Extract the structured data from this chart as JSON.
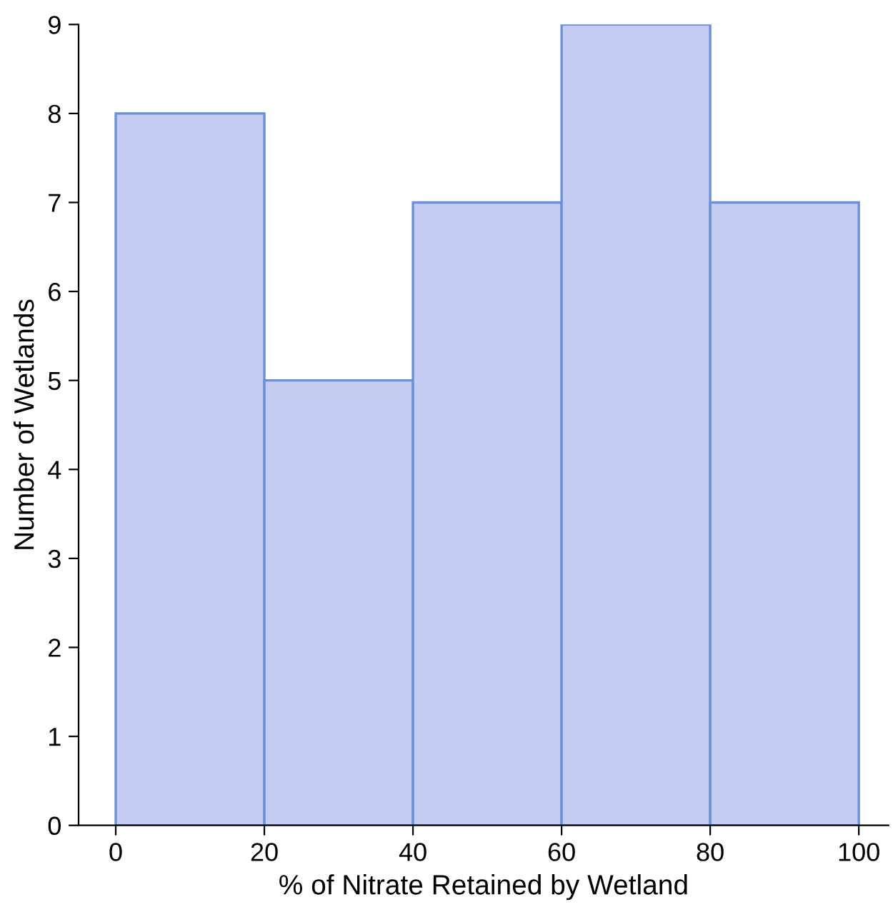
{
  "chart_data": {
    "type": "histogram",
    "xlabel": "% of Nitrate Retained by Wetland",
    "ylabel": "Number of Wetlands",
    "bins": [
      0,
      20,
      40,
      60,
      80,
      100
    ],
    "values": [
      8,
      5,
      7,
      9,
      7
    ],
    "color": "#c5cdf4",
    "xlim": [
      -5,
      104
    ],
    "ylim": [
      0,
      9
    ],
    "xticks": [
      0,
      20,
      40,
      60,
      80,
      100
    ],
    "yticks": [
      0,
      1,
      2,
      3,
      4,
      5,
      6,
      7,
      8,
      9
    ],
    "grid": false
  }
}
